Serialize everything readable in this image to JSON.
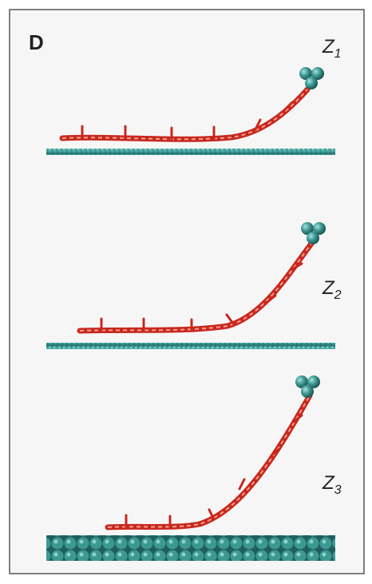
{
  "panel_label": "D",
  "states": [
    {
      "label": "Z",
      "subscript": "1"
    },
    {
      "label": "Z",
      "subscript": "2"
    },
    {
      "label": "Z",
      "subscript": "3"
    }
  ]
}
